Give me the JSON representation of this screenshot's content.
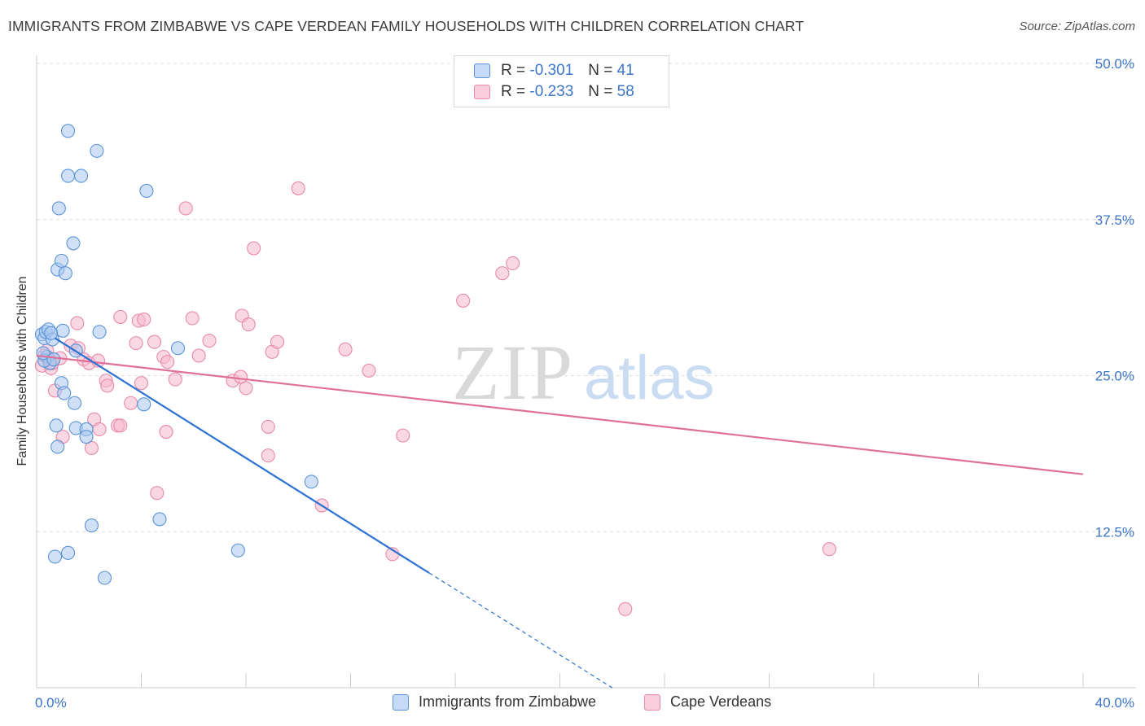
{
  "title": "IMMIGRANTS FROM ZIMBABWE VS CAPE VERDEAN FAMILY HOUSEHOLDS WITH CHILDREN CORRELATION CHART",
  "source": "Source: ZipAtlas.com",
  "watermark": {
    "zip": "ZIP",
    "atlas": "atlas"
  },
  "colors": {
    "blue_fill": "#a9c8f0",
    "blue_stroke": "#5b93d6",
    "blue_line": "#2d72d2",
    "pink_fill": "#f5b8cc",
    "pink_stroke": "#e68aab",
    "pink_line": "#e0709a",
    "axis_text": "#3b74c8",
    "grid": "#dddddd"
  },
  "stats": {
    "zimbabwe": {
      "r_label": "R =",
      "r_value": "-0.301",
      "n_label": "N =",
      "n_value": "41"
    },
    "cape_verdean": {
      "r_label": "R =",
      "r_value": "-0.233",
      "n_label": "N =",
      "n_value": "58"
    }
  },
  "chart_data": {
    "type": "scatter",
    "title": "IMMIGRANTS FROM ZIMBABWE VS CAPE VERDEAN FAMILY HOUSEHOLDS WITH CHILDREN CORRELATION CHART",
    "xlabel": "",
    "ylabel": "Family Households with Children",
    "x_tick_labels": [
      "0.0%",
      "40.0%"
    ],
    "y_tick_labels": [
      "12.5%",
      "25.0%",
      "37.5%",
      "50.0%"
    ],
    "y_ticks": [
      12.5,
      25.0,
      37.5,
      50.0
    ],
    "xlim": [
      0,
      40
    ],
    "ylim": [
      0,
      50
    ],
    "grid": true,
    "legend_position": "bottom",
    "series": [
      {
        "name": "Immigrants from Zimbabwe",
        "color": "blue",
        "points": [
          [
            0.2,
            28.3
          ],
          [
            0.3,
            28.0
          ],
          [
            0.35,
            28.5
          ],
          [
            0.4,
            26.5
          ],
          [
            0.45,
            28.7
          ],
          [
            0.5,
            26.0
          ],
          [
            0.6,
            27.9
          ],
          [
            1.0,
            28.6
          ],
          [
            0.8,
            33.5
          ],
          [
            0.95,
            34.2
          ],
          [
            1.1,
            33.2
          ],
          [
            1.4,
            35.6
          ],
          [
            0.85,
            38.4
          ],
          [
            1.2,
            41.0
          ],
          [
            1.7,
            41.0
          ],
          [
            1.2,
            44.6
          ],
          [
            2.3,
            43.0
          ],
          [
            4.2,
            39.8
          ],
          [
            1.5,
            27.0
          ],
          [
            2.4,
            28.5
          ],
          [
            5.4,
            27.2
          ],
          [
            0.95,
            24.4
          ],
          [
            1.05,
            23.6
          ],
          [
            1.45,
            22.8
          ],
          [
            0.75,
            21.0
          ],
          [
            1.5,
            20.8
          ],
          [
            1.9,
            20.7
          ],
          [
            1.9,
            20.1
          ],
          [
            0.8,
            19.3
          ],
          [
            4.1,
            22.7
          ],
          [
            10.5,
            16.5
          ],
          [
            2.1,
            13.0
          ],
          [
            4.7,
            13.5
          ],
          [
            0.7,
            10.5
          ],
          [
            1.2,
            10.8
          ],
          [
            7.7,
            11.0
          ],
          [
            2.6,
            8.8
          ],
          [
            0.3,
            26.2
          ],
          [
            0.55,
            28.4
          ],
          [
            0.25,
            26.8
          ],
          [
            0.65,
            26.3
          ]
        ]
      },
      {
        "name": "Cape Verdeans",
        "color": "pink",
        "points": [
          [
            0.2,
            25.8
          ],
          [
            0.3,
            26.6
          ],
          [
            0.55,
            25.6
          ],
          [
            0.9,
            26.4
          ],
          [
            0.7,
            23.8
          ],
          [
            1.0,
            20.1
          ],
          [
            1.3,
            27.4
          ],
          [
            1.6,
            27.2
          ],
          [
            1.55,
            29.2
          ],
          [
            1.8,
            26.3
          ],
          [
            2.0,
            26.0
          ],
          [
            2.35,
            26.2
          ],
          [
            2.1,
            19.2
          ],
          [
            2.2,
            21.5
          ],
          [
            2.4,
            20.7
          ],
          [
            2.65,
            24.6
          ],
          [
            2.7,
            24.2
          ],
          [
            3.1,
            21.0
          ],
          [
            3.2,
            21.0
          ],
          [
            3.2,
            29.7
          ],
          [
            3.6,
            22.8
          ],
          [
            3.9,
            29.4
          ],
          [
            3.8,
            27.6
          ],
          [
            4.1,
            29.5
          ],
          [
            4.0,
            24.4
          ],
          [
            4.5,
            27.7
          ],
          [
            4.85,
            26.5
          ],
          [
            5.0,
            26.1
          ],
          [
            4.95,
            20.5
          ],
          [
            5.3,
            24.7
          ],
          [
            5.95,
            29.6
          ],
          [
            6.2,
            26.6
          ],
          [
            6.6,
            27.8
          ],
          [
            5.7,
            38.4
          ],
          [
            4.6,
            15.6
          ],
          [
            7.5,
            24.6
          ],
          [
            7.8,
            24.9
          ],
          [
            8.0,
            24.0
          ],
          [
            7.85,
            29.8
          ],
          [
            8.1,
            29.1
          ],
          [
            8.3,
            35.2
          ],
          [
            8.85,
            20.9
          ],
          [
            8.85,
            18.6
          ],
          [
            9.0,
            26.9
          ],
          [
            9.2,
            27.7
          ],
          [
            10.0,
            40.0
          ],
          [
            10.9,
            14.6
          ],
          [
            11.8,
            27.1
          ],
          [
            12.7,
            25.4
          ],
          [
            14.0,
            20.2
          ],
          [
            13.6,
            10.7
          ],
          [
            16.3,
            31.0
          ],
          [
            17.8,
            33.2
          ],
          [
            18.2,
            34.0
          ],
          [
            22.5,
            6.3
          ],
          [
            30.3,
            11.1
          ],
          [
            0.4,
            27.0
          ],
          [
            0.6,
            26.0
          ]
        ]
      }
    ],
    "trend_lines": [
      {
        "series": "Immigrants from Zimbabwe",
        "solid": [
          [
            0.7,
            28.0
          ],
          [
            15.0,
            9.2
          ]
        ],
        "dashed": [
          [
            15.0,
            9.2
          ],
          [
            22.0,
            0
          ]
        ]
      },
      {
        "series": "Cape Verdeans",
        "solid": [
          [
            0.0,
            26.6
          ],
          [
            40.0,
            17.1
          ]
        ]
      }
    ]
  },
  "legend": {
    "zimbabwe": "Immigrants from Zimbabwe",
    "cape_verdean": "Cape Verdeans"
  }
}
